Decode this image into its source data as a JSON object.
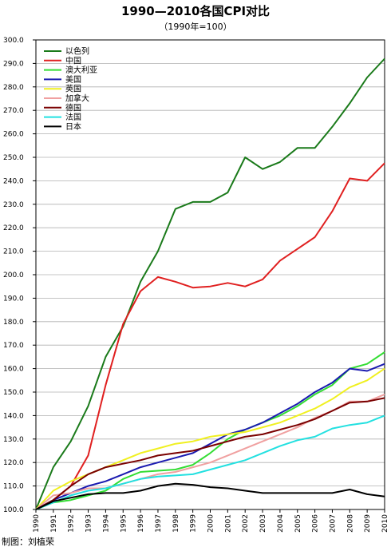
{
  "chart_data": {
    "type": "line",
    "title": "1990—2010各国CPI对比",
    "subtitle": "（1990年=100）",
    "credit": "制图：刘植荣",
    "xlabel": "",
    "ylabel": "",
    "ylim": [
      100,
      300
    ],
    "ytick_step": 10,
    "yticks": [
      "100.0",
      "110.0",
      "120.0",
      "130.0",
      "140.0",
      "150.0",
      "160.0",
      "170.0",
      "180.0",
      "190.0",
      "200.0",
      "210.0",
      "220.0",
      "230.0",
      "240.0",
      "250.0",
      "260.0",
      "270.0",
      "280.0",
      "290.0",
      "300.0"
    ],
    "x": [
      "1990",
      "1991",
      "1992",
      "1993",
      "1994",
      "1995",
      "1996",
      "1997",
      "1998",
      "1999",
      "2000",
      "2001",
      "2002",
      "2003",
      "2004",
      "2005",
      "2006",
      "2007",
      "2008",
      "2009",
      "2010"
    ],
    "grid": true,
    "legend_position": "top-left",
    "series": [
      {
        "name": "以色列",
        "color": "#1a7a1a",
        "values": [
          100,
          118,
          129,
          144,
          165,
          178,
          197,
          210,
          228,
          231,
          231,
          235,
          250,
          245,
          248,
          254,
          254,
          263,
          273,
          284,
          292
        ]
      },
      {
        "name": "中国",
        "color": "#e02020",
        "values": [
          100,
          104,
          110,
          123,
          153,
          179,
          193,
          199,
          197,
          194.5,
          195,
          196.5,
          195,
          198,
          206,
          211,
          216,
          227,
          241,
          240,
          247.5
        ]
      },
      {
        "name": "澳大利亚",
        "color": "#33dd33",
        "values": [
          100,
          103,
          104,
          106,
          108,
          113,
          116,
          116.5,
          117,
          119,
          124,
          130,
          134,
          137,
          140,
          144,
          149,
          153,
          160,
          162,
          167
        ]
      },
      {
        "name": "美国",
        "color": "#1a1ab0",
        "values": [
          100,
          104,
          107,
          110,
          112,
          115,
          118,
          120,
          122,
          124,
          128,
          132,
          134,
          137,
          141,
          145,
          150,
          154,
          160,
          159,
          162
        ]
      },
      {
        "name": "英国",
        "color": "#f0f020",
        "values": [
          100,
          108,
          112,
          115,
          118,
          121,
          124,
          126,
          128,
          129,
          131,
          132,
          133,
          135,
          137,
          140,
          143,
          147,
          152,
          155,
          160
        ]
      },
      {
        "name": "加拿大",
        "color": "#f0a0a0",
        "values": [
          100,
          106,
          107,
          109,
          109,
          111,
          113,
          115,
          116,
          118,
          120,
          123,
          126,
          129,
          132,
          135,
          139,
          142,
          146,
          146,
          149
        ]
      },
      {
        "name": "德国",
        "color": "#7a0000",
        "values": [
          100,
          104,
          110,
          115,
          118,
          119.5,
          121,
          123,
          124,
          125,
          127,
          129,
          131,
          132,
          134,
          136,
          138.5,
          142,
          145.5,
          146,
          147.5
        ]
      },
      {
        "name": "法国",
        "color": "#22e0e0",
        "values": [
          100,
          103,
          106,
          108,
          109,
          111,
          113,
          114,
          114.5,
          115,
          117,
          119,
          121,
          124,
          127,
          129.5,
          131,
          134.5,
          136,
          137,
          140
        ]
      },
      {
        "name": "日本",
        "color": "#000000",
        "values": [
          100,
          103.5,
          105,
          106.5,
          107,
          107,
          108,
          110,
          111,
          110.5,
          109.5,
          109,
          108,
          107,
          107,
          107,
          107,
          107,
          108.5,
          106.5,
          105.5
        ]
      }
    ]
  }
}
